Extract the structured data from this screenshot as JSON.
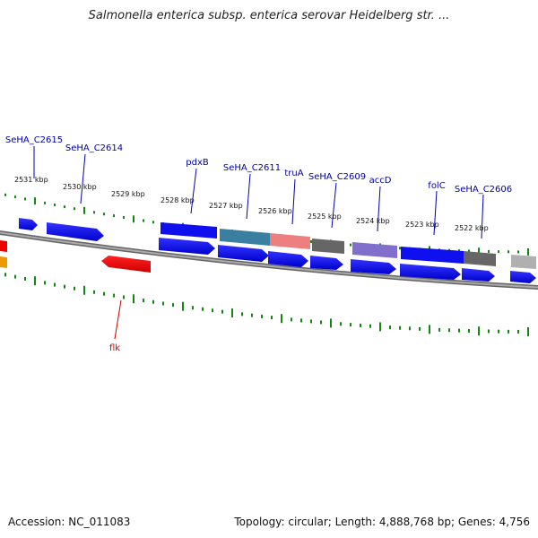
{
  "title": "Salmonella enterica subsp. enterica serovar Heidelberg str. ...",
  "footer": {
    "accession": "Accession: NC_011083",
    "topology": "Topology: circular; Length: 4,888,768 bp; Genes: 4,756"
  },
  "ticks": [
    {
      "kbp": 2531,
      "label": "2531 kbp"
    },
    {
      "kbp": 2530,
      "label": "2530 kbp"
    },
    {
      "kbp": 2529,
      "label": "2529 kbp"
    },
    {
      "kbp": 2528,
      "label": "2528 kbp"
    },
    {
      "kbp": 2527,
      "label": "2527 kbp"
    },
    {
      "kbp": 2526,
      "label": "2526 kbp"
    },
    {
      "kbp": 2525,
      "label": "2525 kbp"
    },
    {
      "kbp": 2524,
      "label": "2524 kbp"
    },
    {
      "kbp": 2523,
      "label": "2523 kbp"
    },
    {
      "kbp": 2522,
      "label": "2522 kbp"
    }
  ],
  "gene_labels": [
    {
      "name": "SeHA_C2615",
      "strand": "forward",
      "color": "#0000aa"
    },
    {
      "name": "SeHA_C2614",
      "strand": "forward",
      "color": "#0000aa"
    },
    {
      "name": "pdxB",
      "strand": "forward",
      "color": "#0000aa"
    },
    {
      "name": "SeHA_C2611",
      "strand": "forward",
      "color": "#0000aa"
    },
    {
      "name": "truA",
      "strand": "forward",
      "color": "#0000aa"
    },
    {
      "name": "SeHA_C2609",
      "strand": "forward",
      "color": "#0000aa"
    },
    {
      "name": "accD",
      "strand": "forward",
      "color": "#0000aa"
    },
    {
      "name": "folC",
      "strand": "forward",
      "color": "#0000aa"
    },
    {
      "name": "SeHA_C2606",
      "strand": "forward",
      "color": "#0000aa"
    },
    {
      "name": "flk",
      "strand": "reverse",
      "color": "#cc0000"
    }
  ],
  "colors": {
    "forward_gene": "#0000ee",
    "reverse_gene": "#ee0000",
    "backbone": "#888888",
    "tick": "#118811",
    "cog_teal": "#3b7fa0",
    "cog_pink": "#ee7f80",
    "cog_gray": "#666666",
    "cog_purple": "#8070cc",
    "cog_light_gray": "#b0b0b0",
    "cog_orange": "#ee9900"
  }
}
